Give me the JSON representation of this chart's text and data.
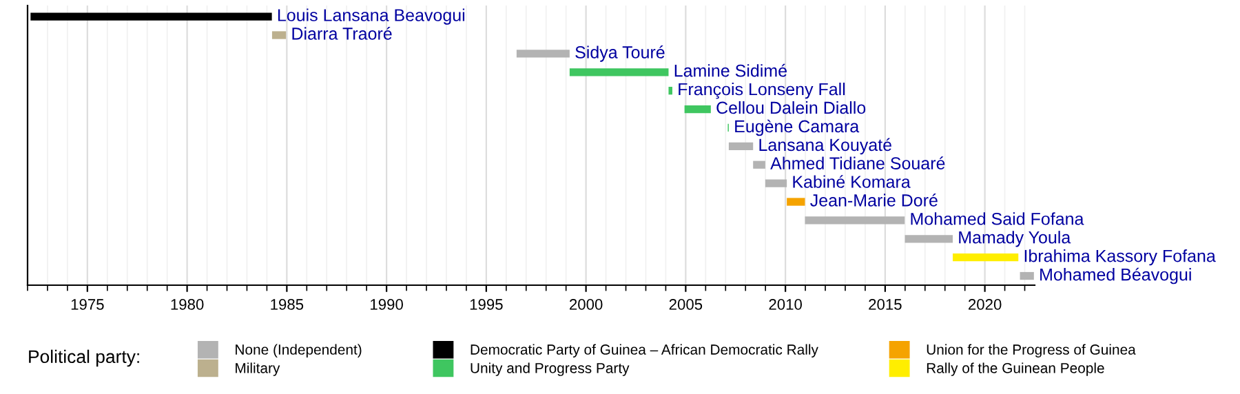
{
  "chart_data": {
    "type": "bar",
    "orientation": "horizontal",
    "legend_title": "Political party:",
    "legend": "bottom",
    "grid": "x",
    "categories": [
      "Louis Lansana Beavogui",
      "Diarra Traoré",
      "Sidya Touré",
      "Lamine Sidimé",
      "François Lonseny Fall",
      "Cellou Dalein Diallo",
      "Eugène Camara",
      "Lansana Kouyaté",
      "Ahmed Tidiane Souaré",
      "Kabiné Komara",
      "Jean-Marie Doré",
      "Mohamed Said Fofana",
      "Mamady Youla",
      "Ibrahima Kassory Fofana",
      "Mohamed Béavogui"
    ],
    "series": [
      {
        "name": "None (Independent)",
        "color": "#b3b3b3",
        "values": [
          null,
          null,
          2.66,
          null,
          null,
          null,
          null,
          1.22,
          0.61,
          1.08,
          null,
          5.0,
          2.4,
          null,
          0.7
        ],
        "base": [
          null,
          null,
          1996.52,
          null,
          null,
          null,
          null,
          2007.16,
          2008.38,
          2008.99,
          null,
          2010.98,
          2015.99,
          null,
          2021.76
        ]
      },
      {
        "name": "Military",
        "color": "#bcb08e",
        "values": [
          null,
          0.7,
          null,
          null,
          null,
          null,
          null,
          null,
          null,
          null,
          null,
          null,
          null,
          null,
          null
        ],
        "base": [
          null,
          1984.26,
          null,
          null,
          null,
          null,
          null,
          null,
          null,
          null,
          null,
          null,
          null,
          null,
          null
        ]
      },
      {
        "name": "Democratic Party of Guinea – African Democratic Rally",
        "color": "#000000",
        "values": [
          12.1,
          null,
          null,
          null,
          null,
          null,
          null,
          null,
          null,
          null,
          null,
          null,
          null,
          null,
          null
        ],
        "base": [
          1972.15,
          null,
          null,
          null,
          null,
          null,
          null,
          null,
          null,
          null,
          null,
          null,
          null,
          null,
          null
        ]
      },
      {
        "name": "Unity and Progress Party",
        "color": "#3fc660",
        "values": [
          null,
          null,
          null,
          4.96,
          0.19,
          1.32,
          0.05,
          null,
          null,
          null,
          null,
          null,
          null,
          null,
          null
        ],
        "base": [
          null,
          null,
          null,
          1999.18,
          2004.14,
          2004.94,
          2007.11,
          null,
          null,
          null,
          null,
          null,
          null,
          null,
          null
        ]
      },
      {
        "name": "Union for the Progress of Guinea",
        "color": "#f5a300",
        "values": [
          null,
          null,
          null,
          null,
          null,
          null,
          null,
          null,
          null,
          null,
          0.91,
          null,
          null,
          null,
          null
        ],
        "base": [
          null,
          null,
          null,
          null,
          null,
          null,
          null,
          null,
          null,
          null,
          2010.07,
          null,
          null,
          null,
          null
        ]
      },
      {
        "name": "Rally of the Guinean People",
        "color": "#ffee00",
        "values": [
          null,
          null,
          null,
          null,
          null,
          null,
          null,
          null,
          null,
          null,
          null,
          null,
          null,
          3.29,
          null
        ],
        "base": [
          null,
          null,
          null,
          null,
          null,
          null,
          null,
          null,
          null,
          null,
          null,
          null,
          null,
          2018.39,
          null
        ]
      }
    ],
    "xlim": [
      1972,
      2022.5
    ],
    "xticks": [
      1975,
      1980,
      1985,
      1990,
      1995,
      2000,
      2005,
      2010,
      2015,
      2020
    ]
  }
}
